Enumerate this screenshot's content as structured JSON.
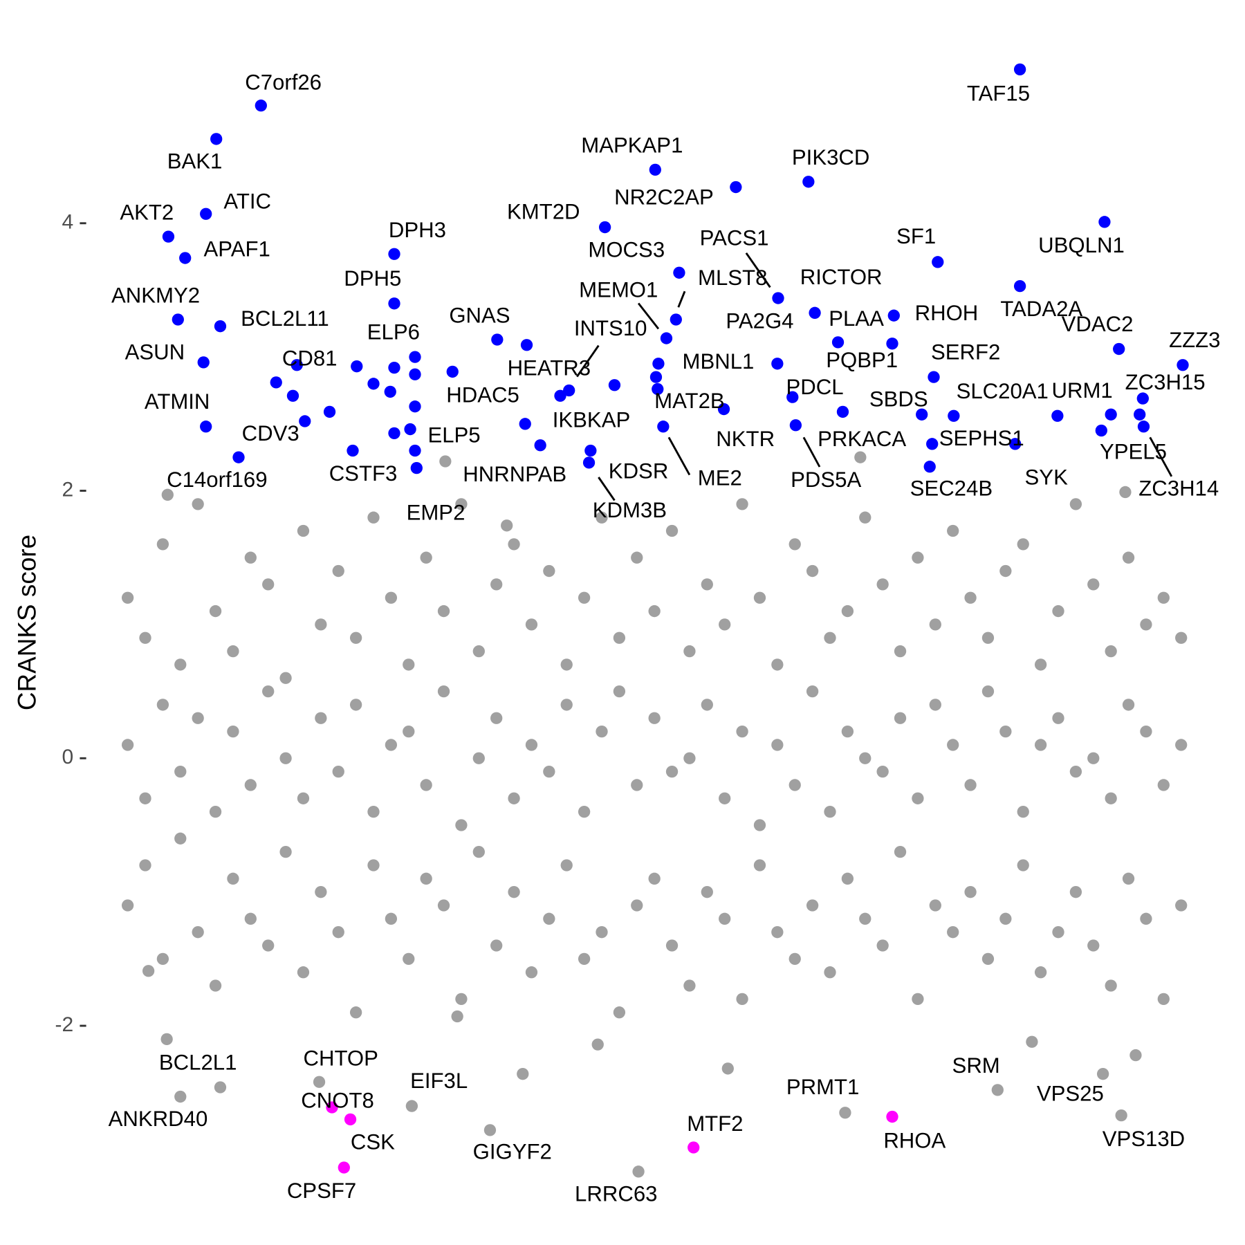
{
  "chart_data": {
    "type": "scatter",
    "ylabel": "CRANKS score",
    "xlim": [
      -20,
      1345
    ],
    "ylim": [
      -3.46,
      5.49
    ],
    "yticks": [
      -2,
      0,
      2,
      4
    ],
    "series": [
      {
        "color": "#a0a0a0",
        "x": [
          0,
          22,
          44,
          66,
          88,
          110,
          132,
          154,
          176,
          198,
          220,
          242,
          264,
          286,
          308,
          330,
          352,
          374,
          396,
          418,
          440,
          462,
          484,
          506,
          528,
          550,
          572,
          594,
          616,
          638,
          660,
          682,
          704,
          726,
          748,
          770,
          792,
          814,
          836,
          858,
          880,
          902,
          924,
          946,
          968,
          990,
          1012,
          1034,
          1056,
          1078,
          1100,
          1122,
          1144,
          1166,
          1188,
          1210,
          1232,
          1254,
          1276,
          1298,
          1320,
          0,
          22,
          44,
          66,
          88,
          110,
          132,
          154,
          176,
          198,
          220,
          242,
          264,
          286,
          308,
          330,
          352,
          374,
          396,
          418,
          440,
          462,
          484,
          506,
          528,
          550,
          572,
          594,
          616,
          638,
          660,
          682,
          704,
          726,
          748,
          770,
          792,
          814,
          836,
          858,
          880,
          902,
          924,
          946,
          968,
          990,
          1012,
          1034,
          1056,
          1078,
          1100,
          1122,
          1144,
          1166,
          1188,
          1210,
          1232,
          1254,
          1276,
          1298,
          1320,
          0,
          22,
          44,
          66,
          88,
          110,
          132,
          154,
          176,
          198,
          220,
          242,
          264,
          286,
          308,
          330,
          352,
          374,
          396,
          418,
          440,
          462,
          484,
          506,
          528,
          550,
          572,
          594,
          616,
          638,
          660,
          682,
          704,
          726,
          748,
          770,
          792,
          814,
          836,
          858,
          880,
          902,
          924,
          946,
          968,
          990,
          1012,
          1034,
          1056,
          1078,
          1100,
          1122,
          1144,
          1166,
          1188,
          1210,
          1232,
          1254,
          1276,
          1298,
          1320,
          116,
          495,
          589,
          752,
          1133,
          1263,
          26,
          413,
          50,
          398,
          475,
          1250,
          918
        ],
        "values": [
          1.2,
          0.9,
          1.6,
          0.7,
          1.9,
          1.1,
          0.8,
          1.5,
          1.3,
          0.6,
          1.7,
          1.0,
          1.4,
          0.9,
          1.8,
          1.2,
          0.7,
          1.5,
          1.1,
          1.9,
          0.8,
          1.3,
          1.6,
          1.0,
          1.4,
          0.7,
          1.2,
          1.8,
          0.9,
          1.5,
          1.1,
          1.7,
          0.8,
          1.3,
          1.0,
          1.9,
          1.2,
          0.7,
          1.6,
          1.4,
          0.9,
          1.1,
          1.8,
          1.3,
          0.8,
          1.5,
          1.0,
          1.7,
          1.2,
          0.9,
          1.4,
          1.6,
          0.7,
          1.1,
          1.9,
          1.3,
          0.8,
          1.5,
          1.0,
          1.2,
          0.9,
          -1.1,
          -0.8,
          -1.5,
          -0.6,
          -1.3,
          -1.7,
          -0.9,
          -1.2,
          -1.4,
          -0.7,
          -1.6,
          -1.0,
          -1.3,
          -1.9,
          -0.8,
          -1.2,
          -1.5,
          -0.9,
          -1.1,
          -1.8,
          -0.7,
          -1.4,
          -1.0,
          -1.6,
          -1.2,
          -0.8,
          -1.5,
          -1.3,
          -1.9,
          -1.1,
          -0.9,
          -1.4,
          -1.7,
          -1.0,
          -1.2,
          -1.8,
          -0.8,
          -1.3,
          -1.5,
          -1.1,
          -1.6,
          -0.9,
          -1.2,
          -1.4,
          -0.7,
          -1.8,
          -1.1,
          -1.3,
          -1.0,
          -1.5,
          -1.2,
          -0.8,
          -1.6,
          -1.3,
          -1.0,
          -1.4,
          -1.7,
          -0.9,
          -1.2,
          -1.8,
          -1.1,
          0.1,
          -0.3,
          0.4,
          -0.1,
          0.3,
          -0.4,
          0.2,
          -0.2,
          0.5,
          0.0,
          -0.3,
          0.3,
          -0.1,
          0.4,
          -0.4,
          0.1,
          0.2,
          -0.2,
          0.5,
          -0.5,
          0.0,
          0.3,
          -0.3,
          0.1,
          -0.1,
          0.4,
          -0.4,
          0.2,
          0.5,
          -0.2,
          0.3,
          -0.1,
          0.0,
          0.4,
          -0.3,
          0.2,
          -0.5,
          0.1,
          -0.2,
          0.5,
          -0.4,
          0.2,
          0.0,
          -0.1,
          0.3,
          -0.3,
          0.4,
          0.1,
          -0.2,
          0.5,
          0.2,
          -0.4,
          0.1,
          0.3,
          -0.1,
          0.0,
          -0.3,
          0.4,
          0.2,
          -0.2,
          0.1,
          -2.46,
          -2.36,
          -2.14,
          -2.32,
          -2.12,
          -2.22,
          -1.59,
          -1.93,
          1.97,
          2.22,
          1.74,
          1.99,
          2.25
        ]
      },
      {
        "color": "#a0a0a0",
        "x": [
          49,
          66,
          240,
          356,
          454,
          640,
          899,
          1090,
          1222,
          1245
        ],
        "values": [
          -2.1,
          -2.53,
          -2.42,
          -2.6,
          -2.78,
          -3.09,
          -2.65,
          -2.48,
          -2.36,
          -2.67
        ],
        "labels": [
          "BCL2L1",
          "ANKRD40",
          "CHTOP",
          "EIF3L",
          "GIGYF2",
          "LRRC63",
          "PRMT1",
          "SRM",
          "VPS25",
          "VPS13D"
        ]
      },
      {
        "color": "#0000ff",
        "x": [
          167,
          111,
          98,
          51,
          72,
          63,
          116,
          95,
          98,
          222,
          139,
          212,
          334,
          334,
          334,
          282,
          354,
          362,
          463,
          407,
          542,
          517,
          498,
          553,
          598,
          661,
          691,
          762,
          853,
          815,
          687,
          675,
          665,
          664,
          671,
          580,
          578,
          814,
          861,
          890,
          960,
          958,
          833,
          747,
          896,
          837,
          1015,
          1010,
          995,
          1035,
          1008,
          1005,
          1118,
          1224,
          1118,
          1242,
          1322,
          1272,
          1165,
          1112,
          1220,
          1273,
          186,
          207,
          253,
          287,
          308,
          329,
          334,
          360,
          360,
          360,
          360,
          500,
          610,
          662,
          1232,
          1268
        ],
        "values": [
          4.88,
          4.63,
          4.07,
          3.9,
          3.74,
          3.28,
          3.23,
          2.96,
          2.48,
          2.52,
          2.25,
          2.94,
          3.77,
          3.4,
          2.92,
          2.3,
          2.46,
          2.17,
          3.13,
          2.89,
          2.71,
          2.34,
          2.5,
          2.75,
          3.97,
          4.4,
          3.63,
          4.27,
          4.31,
          3.44,
          3.28,
          3.14,
          2.95,
          2.76,
          2.48,
          2.3,
          2.21,
          2.95,
          3.33,
          3.11,
          3.31,
          3.1,
          2.7,
          2.61,
          2.59,
          2.49,
          3.71,
          2.85,
          2.57,
          2.56,
          2.35,
          2.18,
          5.15,
          4.01,
          3.53,
          3.06,
          2.94,
          2.69,
          2.56,
          2.35,
          2.45,
          2.48,
          2.81,
          2.71,
          2.59,
          2.93,
          2.8,
          2.74,
          2.43,
          2.87,
          2.63,
          3.0,
          2.3,
          3.09,
          2.79,
          2.85,
          2.57,
          2.57
        ],
        "labels": [
          "C7orf26",
          "BAK1",
          "ATIC",
          "AKT2",
          "APAF1",
          "ANKMY2",
          "BCL2L11",
          "ASUN",
          "ATMIN",
          "CDV3",
          "C14orf169",
          "CD81",
          "DPH3",
          "DPH5",
          "ELP6",
          "CSTF3",
          "ELP5",
          "EMP2",
          "GNAS",
          "HDAC5",
          "HEATR3",
          "HNRNPAB",
          "IKBKAP",
          "INTS10",
          "KMT2D",
          "MAPKAP1",
          "MOCS3",
          "NR2C2AP",
          "PIK3CD",
          "PACS1",
          "MLST8",
          "MEMO1",
          "MBNL1",
          "MAT2B",
          "ME2",
          "KDSR",
          "KDM3B",
          "PA2G4",
          "RICTOR",
          "PLAA",
          "RHOH",
          "PQBP1",
          "PDCL",
          "NKTR",
          "PRKACA",
          "PDS5A",
          "SF1",
          "SERF2",
          "SBDS",
          "SLC20A1",
          "SEPHS1",
          "SEC24B",
          "TAF15",
          "UBQLN1",
          "TADA2A",
          "VDAC2",
          "ZZZ3",
          "ZC3H15",
          "URM1",
          "SYK",
          "YPEL5",
          "ZC3H14",
          null,
          null,
          null,
          null,
          null,
          null,
          null,
          null,
          null,
          null,
          null,
          null,
          null,
          null,
          null,
          null
        ]
      },
      {
        "color": "#ff00ff",
        "x": [
          256,
          279,
          271,
          709,
          958
        ],
        "values": [
          -2.61,
          -2.7,
          -3.06,
          -2.91,
          -2.68
        ],
        "labels": [
          "CNOT8",
          "CSK",
          "CPSF7",
          "MTF2",
          "RHOA"
        ]
      }
    ]
  }
}
